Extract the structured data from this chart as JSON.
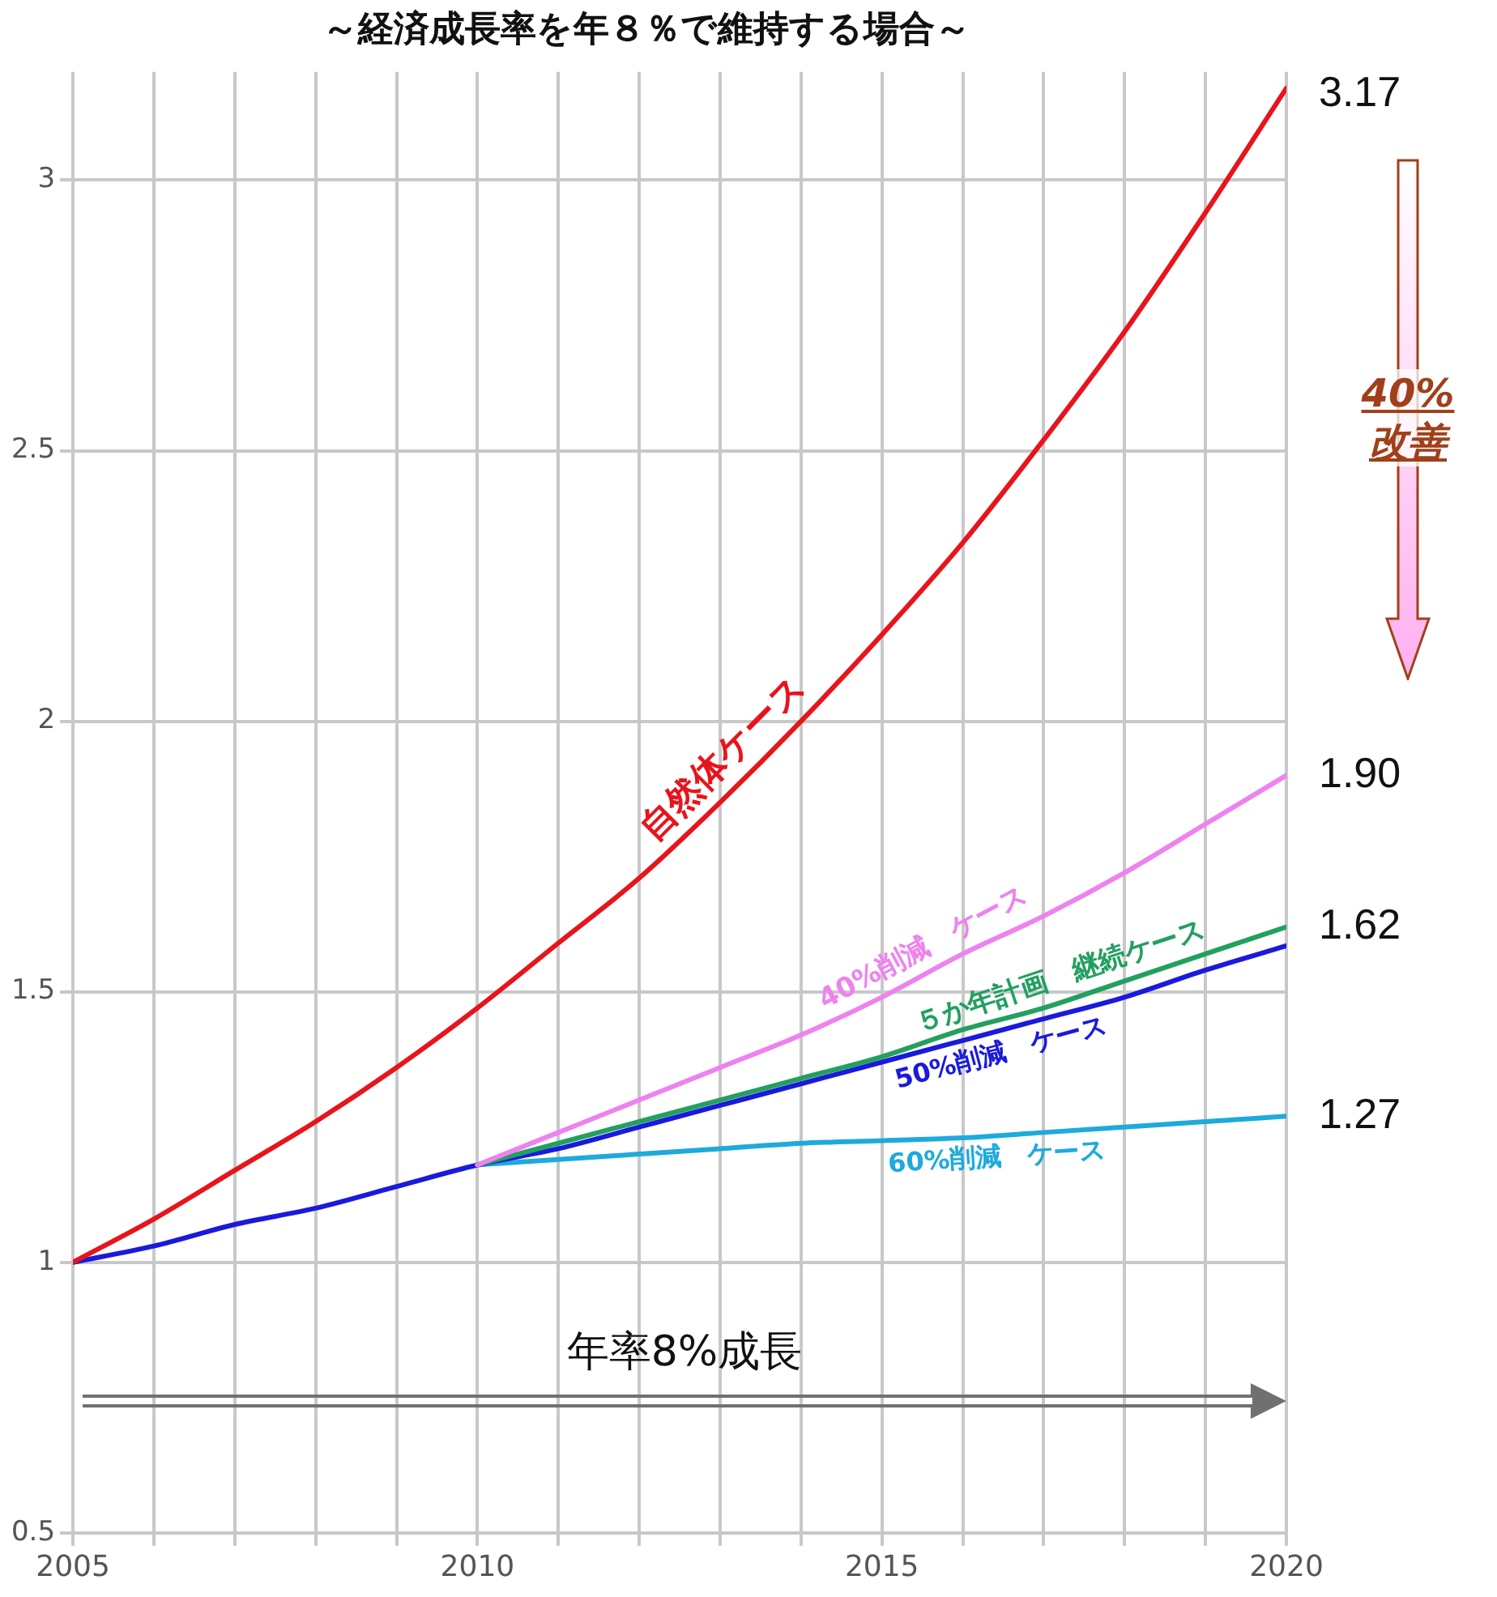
{
  "chart_data": {
    "type": "line",
    "title": "～経済成長率を年８％で維持する場合～",
    "x": [
      2005,
      2006,
      2007,
      2008,
      2009,
      2010,
      2011,
      2012,
      2013,
      2014,
      2015,
      2016,
      2017,
      2018,
      2019,
      2020
    ],
    "series": [
      {
        "name": "自然体ケース",
        "color": "#e8141c",
        "values": [
          1.0,
          1.08,
          1.17,
          1.26,
          1.36,
          1.47,
          1.59,
          1.71,
          1.85,
          2.0,
          2.16,
          2.33,
          2.52,
          2.72,
          2.94,
          3.17
        ],
        "value_labels": [
          null,
          null,
          null,
          null,
          null,
          null,
          null,
          null,
          null,
          null,
          null,
          null,
          null,
          null,
          null,
          "3.17"
        ]
      },
      {
        "name": "40%削減　ケース",
        "color": "#ee82ee",
        "x": [
          2010,
          2011,
          2012,
          2013,
          2014,
          2015,
          2016,
          2017,
          2018,
          2019,
          2020
        ],
        "values": [
          1.18,
          1.24,
          1.3,
          1.36,
          1.42,
          1.49,
          1.57,
          1.64,
          1.72,
          1.81,
          1.9
        ],
        "value_labels": [
          null,
          null,
          null,
          null,
          null,
          null,
          null,
          null,
          null,
          null,
          "1.90"
        ]
      },
      {
        "name": "５か年計画　継続ケース",
        "color": "#22a060",
        "x": [
          2010,
          2011,
          2012,
          2013,
          2014,
          2015,
          2016,
          2017,
          2018,
          2019,
          2020
        ],
        "values": [
          1.18,
          1.22,
          1.26,
          1.3,
          1.34,
          1.38,
          1.43,
          1.47,
          1.52,
          1.57,
          1.62
        ],
        "value_labels": [
          null,
          null,
          null,
          null,
          null,
          null,
          null,
          null,
          null,
          null,
          "1.62"
        ]
      },
      {
        "name": "50%削減　ケース",
        "color": "#1a1adc",
        "values": [
          1.0,
          1.03,
          1.07,
          1.1,
          1.14,
          1.18,
          1.21,
          1.25,
          1.29,
          1.33,
          1.37,
          1.41,
          1.45,
          1.49,
          1.54,
          1.585
        ]
      },
      {
        "name": "60%削減　ケース",
        "color": "#1eaadc",
        "x": [
          2010,
          2011,
          2012,
          2013,
          2014,
          2015,
          2016,
          2017,
          2018,
          2019,
          2020
        ],
        "values": [
          1.18,
          1.19,
          1.2,
          1.21,
          1.22,
          1.225,
          1.23,
          1.24,
          1.25,
          1.26,
          1.27
        ],
        "value_labels": [
          null,
          null,
          null,
          null,
          null,
          null,
          null,
          null,
          null,
          null,
          "1.27"
        ]
      }
    ],
    "xlim": [
      2005,
      2020
    ],
    "xticks": [
      2005,
      {
        "value": 2006,
        "label": null
      },
      {
        "value": 2007,
        "label": null
      },
      {
        "value": 2008,
        "label": null
      },
      {
        "value": 2009,
        "label": null
      },
      2010,
      {
        "value": 2011,
        "label": null
      },
      {
        "value": 2012,
        "label": null
      },
      {
        "value": 2013,
        "label": null
      },
      {
        "value": 2014,
        "label": null
      },
      2015,
      {
        "value": 2016,
        "label": null
      },
      {
        "value": 2017,
        "label": null
      },
      {
        "value": 2018,
        "label": null
      },
      {
        "value": 2019,
        "label": null
      },
      2020
    ],
    "ylim": [
      0.5,
      3.2
    ],
    "yticks": [
      0.5,
      1,
      1.5,
      2,
      2.5,
      3
    ],
    "grid": true,
    "legend": false,
    "marker": "none",
    "line_style": "solid",
    "annotations": [
      "年率8%成長",
      "40%\n改善"
    ]
  }
}
